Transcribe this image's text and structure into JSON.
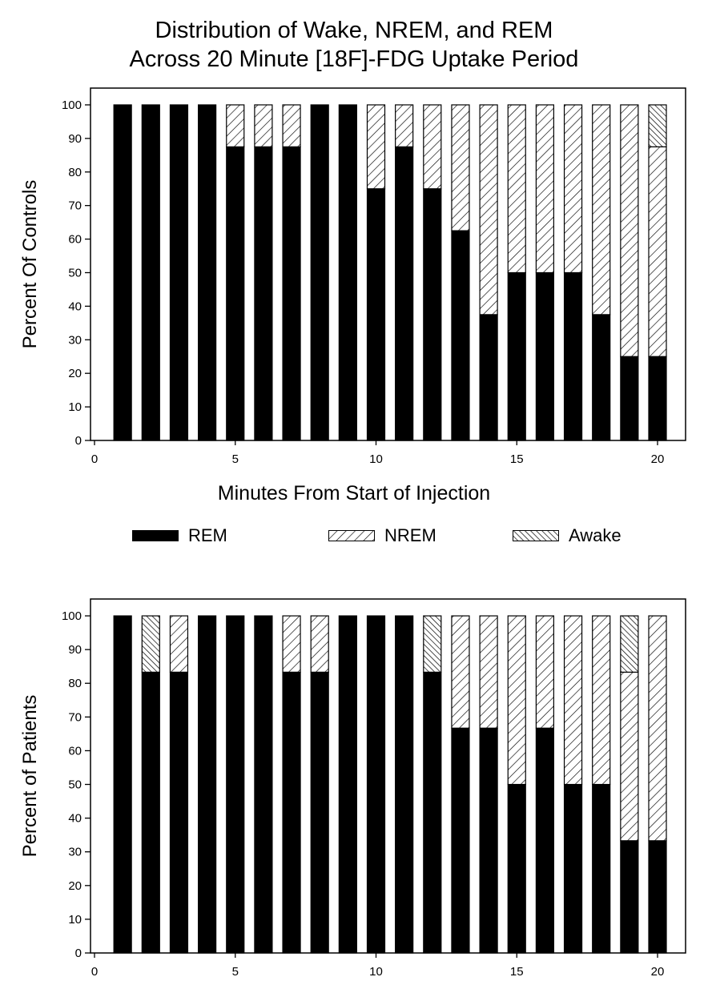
{
  "title_line1": "Distribution of Wake, NREM, and REM",
  "title_line2": "Across 20 Minute [18F]-FDG Uptake Period",
  "xlabel": "Minutes From Start of Injection",
  "legend": [
    {
      "label": "REM",
      "pattern": "solid"
    },
    {
      "label": "NREM",
      "pattern": "hatch-forward"
    },
    {
      "label": "Awake",
      "pattern": "hatch-back"
    }
  ],
  "colors": {
    "rem": "#000000",
    "background": "#ffffff",
    "stroke": "#000000"
  },
  "chart_data": [
    {
      "type": "bar",
      "stacked": true,
      "ylabel": "Percent Of Controls",
      "x": [
        1,
        2,
        3,
        4,
        5,
        6,
        7,
        8,
        9,
        10,
        11,
        12,
        13,
        14,
        15,
        16,
        17,
        18,
        19,
        20
      ],
      "xlim": [
        0,
        21
      ],
      "xticks": [
        0,
        5,
        10,
        15,
        20
      ],
      "ylim": [
        0,
        105
      ],
      "yticks": [
        0,
        10,
        20,
        30,
        40,
        50,
        60,
        70,
        80,
        90,
        100
      ],
      "series": [
        {
          "name": "REM",
          "values": [
            100,
            100,
            100,
            100,
            87.5,
            87.5,
            87.5,
            100,
            100,
            75,
            87.5,
            75,
            62.5,
            37.5,
            50,
            50,
            50,
            37.5,
            25,
            25
          ]
        },
        {
          "name": "NREM",
          "values": [
            0,
            0,
            0,
            0,
            12.5,
            12.5,
            12.5,
            0,
            0,
            25,
            12.5,
            25,
            37.5,
            62.5,
            50,
            50,
            50,
            62.5,
            75,
            62.5
          ]
        },
        {
          "name": "Awake",
          "values": [
            0,
            0,
            0,
            0,
            0,
            0,
            0,
            0,
            0,
            0,
            0,
            0,
            0,
            0,
            0,
            0,
            0,
            0,
            0,
            12.5
          ]
        }
      ]
    },
    {
      "type": "bar",
      "stacked": true,
      "ylabel": "Percent of Patients",
      "x": [
        1,
        2,
        3,
        4,
        5,
        6,
        7,
        8,
        9,
        10,
        11,
        12,
        13,
        14,
        15,
        16,
        17,
        18,
        19,
        20
      ],
      "xlim": [
        0,
        21
      ],
      "xticks": [
        0,
        5,
        10,
        15,
        20
      ],
      "ylim": [
        0,
        105
      ],
      "yticks": [
        0,
        10,
        20,
        30,
        40,
        50,
        60,
        70,
        80,
        90,
        100
      ],
      "series": [
        {
          "name": "REM",
          "values": [
            100,
            83.3,
            83.3,
            100,
            100,
            100,
            83.3,
            83.3,
            100,
            100,
            100,
            83.3,
            66.7,
            66.7,
            50,
            66.7,
            50,
            50,
            33.3,
            33.3
          ]
        },
        {
          "name": "NREM",
          "values": [
            0,
            0,
            16.7,
            0,
            0,
            0,
            16.7,
            16.7,
            0,
            0,
            0,
            0,
            33.3,
            33.3,
            50,
            33.3,
            50,
            50,
            50,
            66.7
          ]
        },
        {
          "name": "Awake",
          "values": [
            0,
            16.7,
            0,
            0,
            0,
            0,
            0,
            0,
            0,
            0,
            0,
            16.7,
            0,
            0,
            0,
            0,
            0,
            0,
            16.7,
            0
          ]
        }
      ]
    }
  ]
}
